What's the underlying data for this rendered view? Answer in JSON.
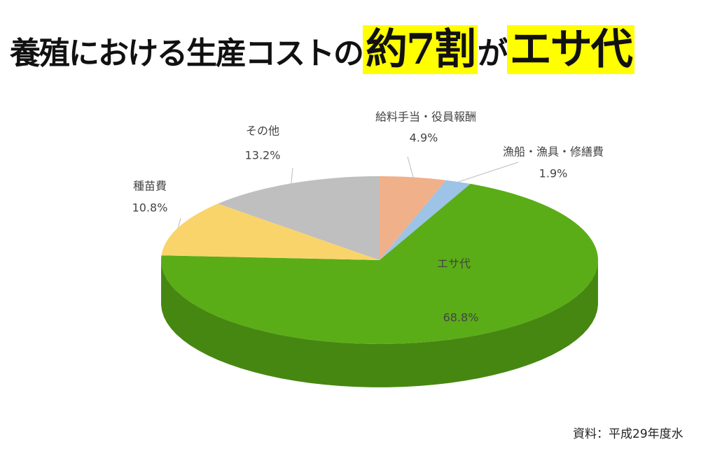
{
  "title_parts": [
    "養殖における生産コストの",
    "約7割",
    "が",
    "エサ代"
  ],
  "source": "資料：平成29年度水",
  "chart_data": {
    "type": "pie3d",
    "categories": [
      "給料手当・役員報酬",
      "漁船・漁具・修繕費",
      "エサ代",
      "種苗費",
      "その他"
    ],
    "values": [
      4.9,
      1.9,
      68.8,
      10.8,
      13.2
    ],
    "value_labels": [
      "4.9%",
      "1.9%",
      "68.8%",
      "10.8%",
      "13.2%"
    ],
    "colors": [
      "#f0b08a",
      "#9dc3e6",
      "#5aad17",
      "#f9d46b",
      "#bfbfbf"
    ]
  }
}
